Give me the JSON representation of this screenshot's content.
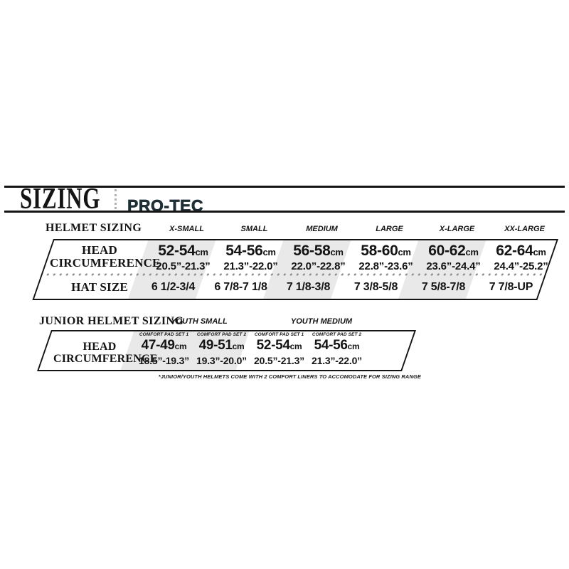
{
  "header": {
    "title": "SIZING",
    "brand": "PRO-TEC"
  },
  "units": {
    "cm": "cm"
  },
  "adult": {
    "section_title": "HELMET SIZING",
    "columns": [
      "X-SMALL",
      "SMALL",
      "MEDIUM",
      "LARGE",
      "X-LARGE",
      "XX-LARGE"
    ],
    "head_label": [
      "HEAD",
      "CIRCUMFERENCE"
    ],
    "hat_label": "HAT SIZE",
    "head": [
      {
        "cm": "52-54",
        "in": "20.5”-21.3”"
      },
      {
        "cm": "54-56",
        "in": "21.3”-22.0”"
      },
      {
        "cm": "56-58",
        "in": "22.0”-22.8”"
      },
      {
        "cm": "58-60",
        "in": "22.8”-23.6”"
      },
      {
        "cm": "60-62",
        "in": "23.6”-24.4”"
      },
      {
        "cm": "62-64",
        "in": "24.4”-25.2”"
      }
    ],
    "hat_sizes": [
      "6 1/2-3/4",
      "6 7/8-7 1/8",
      "7 1/8-3/8",
      "7 3/8-5/8",
      "7 5/8-7/8",
      "7 7/8-UP"
    ]
  },
  "junior": {
    "section_title": "JUNIOR HELMET SIZING",
    "groups": [
      "YOUTH SMALL",
      "YOUTH MEDIUM"
    ],
    "pad_sets": [
      "COMFORT PAD SET 1",
      "COMFORT PAD SET 2",
      "COMFORT PAD SET 1",
      "COMFORT PAD SET 2"
    ],
    "head_label": [
      "HEAD",
      "CIRCUMFERENCE"
    ],
    "head": [
      {
        "cm": "47-49",
        "in": "18.5”-19.3”"
      },
      {
        "cm": "49-51",
        "in": "19.3”-20.0”"
      },
      {
        "cm": "52-54",
        "in": "20.5”-21.3”"
      },
      {
        "cm": "54-56",
        "in": "21.3”-22.0”"
      }
    ],
    "footnote": "*JUNIOR/YOUTH HELMETS COME WITH 2 COMFORT LINERS TO ACCOMODATE FOR SIZING RANGE"
  },
  "colors": {
    "stripe": "#e9e9e9",
    "border": "#141414",
    "dots": "#8f8f8f",
    "logo": "#1e2e35"
  },
  "chart_data": [
    {
      "type": "table",
      "title": "HELMET SIZING",
      "columns": [
        "",
        "X-SMALL",
        "SMALL",
        "MEDIUM",
        "LARGE",
        "X-LARGE",
        "XX-LARGE"
      ],
      "rows": [
        [
          "HEAD CIRCUMFERENCE (cm)",
          "52-54",
          "54-56",
          "56-58",
          "58-60",
          "60-62",
          "62-64"
        ],
        [
          "HEAD CIRCUMFERENCE (in)",
          "20.5-21.3",
          "21.3-22.0",
          "22.0-22.8",
          "22.8-23.6",
          "23.6-24.4",
          "24.4-25.2"
        ],
        [
          "HAT SIZE",
          "6 1/2-3/4",
          "6 7/8-7 1/8",
          "7 1/8-3/8",
          "7 3/8-5/8",
          "7 5/8-7/8",
          "7 7/8-UP"
        ]
      ]
    },
    {
      "type": "table",
      "title": "JUNIOR HELMET SIZING",
      "columns": [
        "",
        "YOUTH SMALL / COMFORT PAD SET 1",
        "YOUTH SMALL / COMFORT PAD SET 2",
        "YOUTH MEDIUM / COMFORT PAD SET 1",
        "YOUTH MEDIUM / COMFORT PAD SET 2"
      ],
      "rows": [
        [
          "HEAD CIRCUMFERENCE (cm)",
          "47-49",
          "49-51",
          "52-54",
          "54-56"
        ],
        [
          "HEAD CIRCUMFERENCE (in)",
          "18.5-19.3",
          "19.3-20.0",
          "20.5-21.3",
          "21.3-22.0"
        ]
      ]
    }
  ]
}
